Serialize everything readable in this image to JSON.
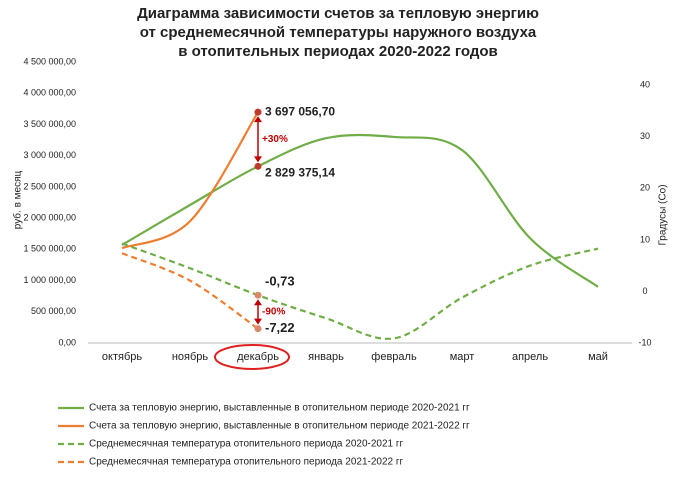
{
  "chart_data": {
    "type": "line",
    "title": [
      "Диаграмма зависимости счетов за тепловую энергию",
      "от среднемесячной температуры наружного воздуха",
      "в отопительных периодах 2020-2022 годов"
    ],
    "ylabel": "руб. в месяц",
    "y2label": "Градусы (Со)",
    "categories": [
      "октябрь",
      "ноябрь",
      "декабрь",
      "январь",
      "февраль",
      "март",
      "апрель",
      "май"
    ],
    "ylim": [
      0,
      4500000
    ],
    "yticks": [
      {
        "value": 0,
        "label": "0,00"
      },
      {
        "value": 500000,
        "label": "500 000,00"
      },
      {
        "value": 1000000,
        "label": "1 000 000,00"
      },
      {
        "value": 1500000,
        "label": "1 500 000,00"
      },
      {
        "value": 2000000,
        "label": "2 000 000,00"
      },
      {
        "value": 2500000,
        "label": "2 500 000,00"
      },
      {
        "value": 3000000,
        "label": "3 000 000,00"
      },
      {
        "value": 3500000,
        "label": "3 500 000,00"
      },
      {
        "value": 4000000,
        "label": "4 000 000,00"
      },
      {
        "value": 4500000,
        "label": "4 500 000,00"
      }
    ],
    "y2lim": [
      -10,
      44.5
    ],
    "y2ticks": [
      -10,
      0,
      10,
      20,
      30,
      40
    ],
    "series": [
      {
        "name": "Счета за тепловую энергию, выставленные в отопительном периоде 2020-2021 гг",
        "color": "#70ad47",
        "dash": false,
        "axis": "y",
        "values": [
          1570000,
          2210000,
          2829375.14,
          3280000,
          3300000,
          3090000,
          1680000,
          900000
        ],
        "value_labels": [
          null,
          null,
          "2 829 375,14",
          null,
          null,
          null,
          null,
          null
        ]
      },
      {
        "name": "Счета за тепловую энергию, выставленные в отопительном периоде 2021-2022 гг",
        "color": "#ed7d31",
        "dash": false,
        "axis": "y",
        "values": [
          1520000,
          1950000,
          3697056.7,
          null,
          null,
          null,
          null,
          null
        ],
        "value_labels": [
          null,
          null,
          "3 697 056,70",
          null,
          null,
          null,
          null,
          null
        ]
      },
      {
        "name": "Среднемесячная температура отопительного периода 2020-2021 гг",
        "color": "#70ad47",
        "dash": true,
        "axis": "y2",
        "values": [
          9.3,
          4.5,
          -0.73,
          -5.2,
          -9.1,
          -1.2,
          5,
          8.3
        ],
        "value_labels": [
          null,
          null,
          "-0,73",
          null,
          null,
          null,
          null,
          null
        ]
      },
      {
        "name": "Среднемесячная температура отопительного периода 2021-2022 гг",
        "color": "#ed7d31",
        "dash": true,
        "axis": "y2",
        "values": [
          7.4,
          2.1,
          -7.22,
          null,
          null,
          null,
          null,
          null
        ],
        "value_labels": [
          null,
          null,
          "-7,22",
          null,
          null,
          null,
          null,
          null
        ]
      }
    ],
    "annotations": [
      "+30%",
      "-90%"
    ]
  }
}
